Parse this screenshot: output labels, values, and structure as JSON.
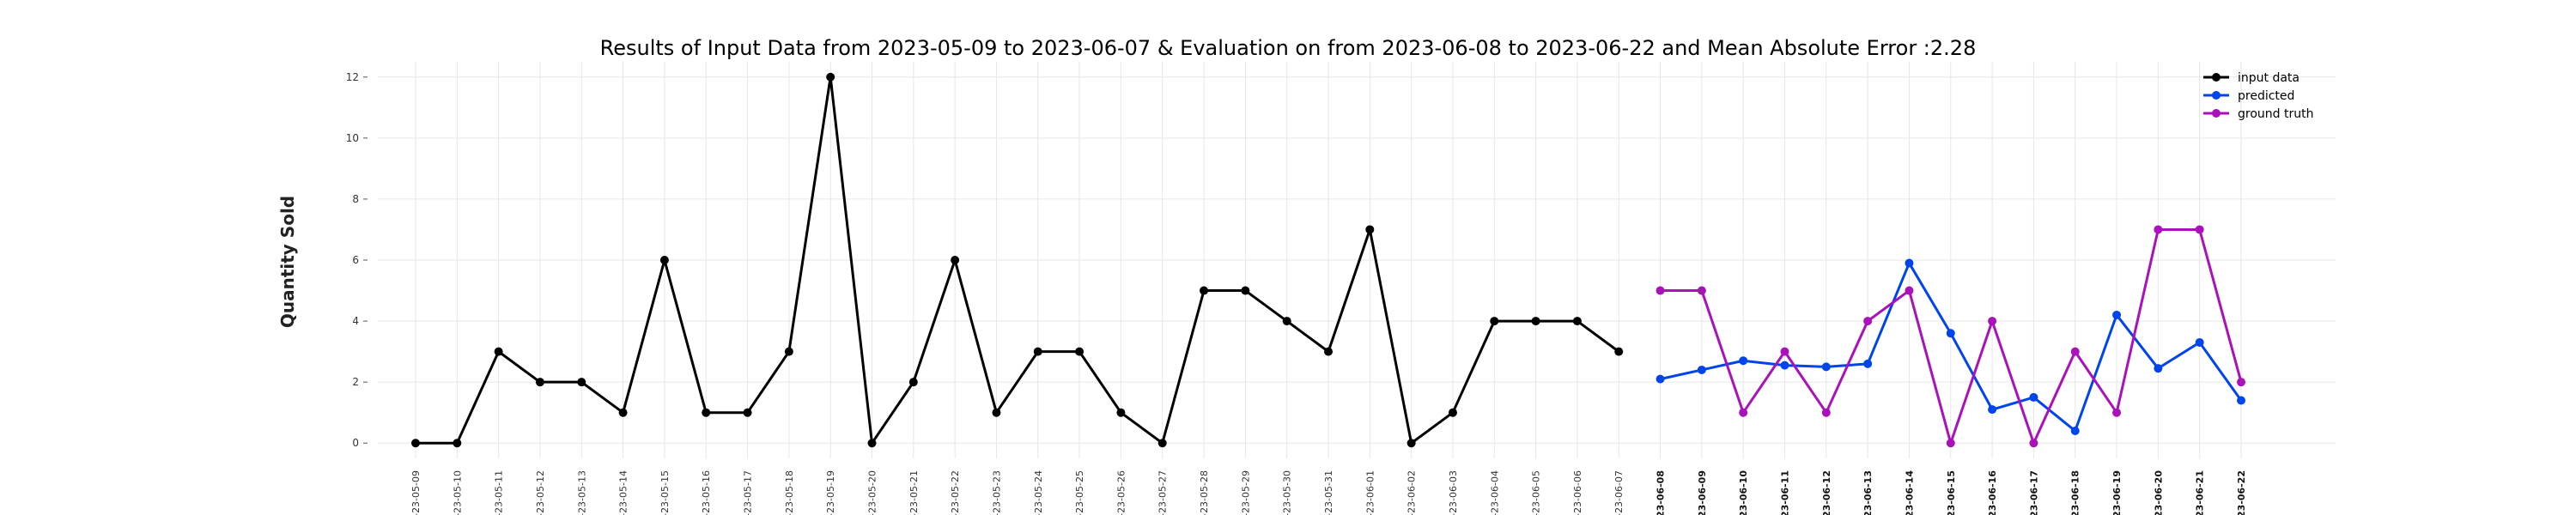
{
  "chart_data": {
    "type": "line",
    "title": "Results of Input Data from 2023-05-09 to 2023-06-07 & Evaluation on from 2023-06-08 to 2023-06-22 and Mean Absolute Error  :2.28",
    "xlabel": "",
    "ylabel": "Quantity Sold",
    "ylim": [
      -0.5,
      12.5
    ],
    "yticks": [
      0,
      2,
      4,
      6,
      8,
      10,
      12
    ],
    "grid": true,
    "legend_position": "top-right",
    "x": [
      "2023-05-09",
      "2023-05-10",
      "2023-05-11",
      "2023-05-12",
      "2023-05-13",
      "2023-05-14",
      "2023-05-15",
      "2023-05-16",
      "2023-05-17",
      "2023-05-18",
      "2023-05-19",
      "2023-05-20",
      "2023-05-21",
      "2023-05-22",
      "2023-05-23",
      "2023-05-24",
      "2023-05-25",
      "2023-05-26",
      "2023-05-27",
      "2023-05-28",
      "2023-05-29",
      "2023-05-30",
      "2023-05-31",
      "2023-06-01",
      "2023-06-02",
      "2023-06-03",
      "2023-06-04",
      "2023-06-05",
      "2023-06-06",
      "2023-06-07",
      "2023-06-08",
      "2023-06-09",
      "2023-06-10",
      "2023-06-11",
      "2023-06-12",
      "2023-06-13",
      "2023-06-14",
      "2023-06-15",
      "2023-06-16",
      "2023-06-17",
      "2023-06-18",
      "2023-06-19",
      "2023-06-20",
      "2023-06-21",
      "2023-06-22"
    ],
    "xtick_labels": [
      "-23-05-09",
      "-23-05-10",
      "-23-05-11",
      "-23-05-12",
      "-23-05-13",
      "-23-05-14",
      "-23-05-15",
      "-23-05-16",
      "-23-05-17",
      "-23-05-18",
      "-23-05-19",
      "-23-05-20",
      "-23-05-21",
      "-23-05-22",
      "-23-05-23",
      "-23-05-24",
      "-23-05-25",
      "-23-05-26",
      "-23-05-27",
      "-23-05-28",
      "-23-05-29",
      "-23-05-30",
      "-23-05-31",
      "-23-06-01",
      "-23-06-02",
      "-23-06-03",
      "-23-06-04",
      "-23-06-05",
      "-23-06-06",
      "-23-06-07",
      "-23-06-08",
      "-23-06-09",
      "-23-06-10",
      "-23-06-11",
      "-23-06-12",
      "-23-06-13",
      "-23-06-14",
      "-23-06-15",
      "-23-06-16",
      "-23-06-17",
      "-23-06-18",
      "-23-06-19",
      "-23-06-20",
      "-23-06-21",
      "-23-06-22"
    ],
    "series": [
      {
        "name": "input data",
        "color": "#000000",
        "x": [
          "2023-05-09",
          "2023-05-10",
          "2023-05-11",
          "2023-05-12",
          "2023-05-13",
          "2023-05-14",
          "2023-05-15",
          "2023-05-16",
          "2023-05-17",
          "2023-05-18",
          "2023-05-19",
          "2023-05-20",
          "2023-05-21",
          "2023-05-22",
          "2023-05-23",
          "2023-05-24",
          "2023-05-25",
          "2023-05-26",
          "2023-05-27",
          "2023-05-28",
          "2023-05-29",
          "2023-05-30",
          "2023-05-31",
          "2023-06-01",
          "2023-06-02",
          "2023-06-03",
          "2023-06-04",
          "2023-06-05",
          "2023-06-06",
          "2023-06-07"
        ],
        "values": [
          0,
          0,
          3,
          2,
          2,
          1,
          6,
          1,
          1,
          3,
          12,
          0,
          2,
          6,
          1,
          3,
          3,
          1,
          0,
          5,
          5,
          4,
          3,
          7,
          0,
          1,
          4,
          4,
          4,
          3
        ]
      },
      {
        "name": "predicted",
        "color": "#0044ee",
        "x": [
          "2023-06-08",
          "2023-06-09",
          "2023-06-10",
          "2023-06-11",
          "2023-06-12",
          "2023-06-13",
          "2023-06-14",
          "2023-06-15",
          "2023-06-16",
          "2023-06-17",
          "2023-06-18",
          "2023-06-19",
          "2023-06-20",
          "2023-06-21",
          "2023-06-22"
        ],
        "values": [
          2.1,
          2.4,
          2.7,
          2.55,
          2.5,
          2.6,
          5.9,
          3.6,
          1.1,
          1.5,
          0.4,
          4.2,
          2.45,
          3.3,
          1.4
        ]
      },
      {
        "name": "ground truth",
        "color": "#aa11bb",
        "x": [
          "2023-06-08",
          "2023-06-09",
          "2023-06-10",
          "2023-06-11",
          "2023-06-12",
          "2023-06-13",
          "2023-06-14",
          "2023-06-15",
          "2023-06-16",
          "2023-06-17",
          "2023-06-18",
          "2023-06-19",
          "2023-06-20",
          "2023-06-21",
          "2023-06-22"
        ],
        "values": [
          5,
          5,
          1,
          3,
          1,
          4,
          5,
          0,
          4,
          0,
          3,
          1,
          7,
          7,
          2
        ]
      }
    ]
  }
}
